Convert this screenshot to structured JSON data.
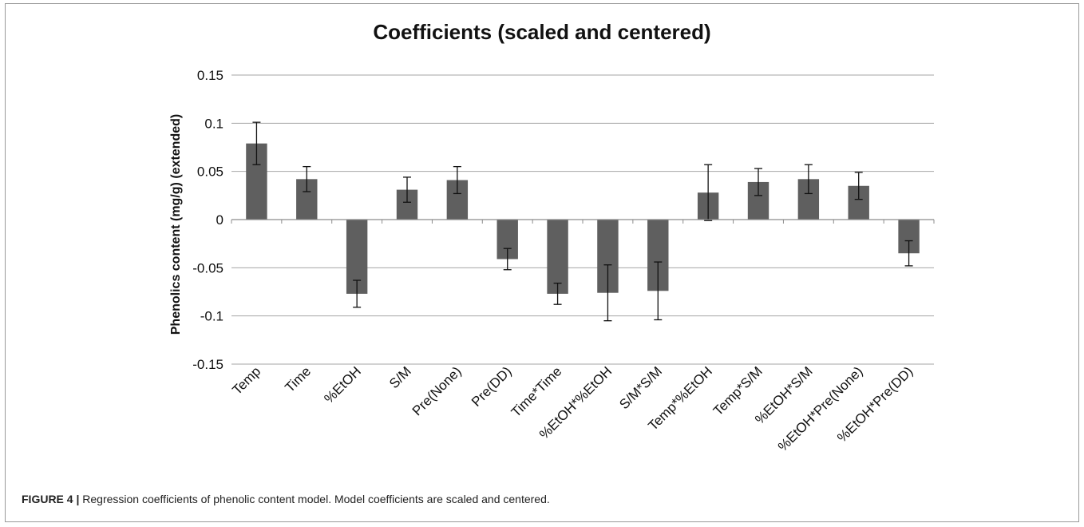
{
  "caption": {
    "label": "FIGURE 4 |",
    "text": " Regression coefficients of phenolic content model. Model coefficients are scaled and centered."
  },
  "chart_data": {
    "type": "bar",
    "title": "Coefficients (scaled and centered)",
    "xlabel": "",
    "ylabel": "Phenolics content (mg/g) (extended)",
    "ylim": [
      -0.15,
      0.15
    ],
    "yticks": [
      0.15,
      0.1,
      0.05,
      0,
      -0.05,
      -0.1,
      -0.15
    ],
    "ytick_labels": [
      "0.15",
      "0.1",
      "0.05",
      "0",
      "-0.05",
      "-0.1",
      "-0.15"
    ],
    "grid": true,
    "legend": "none",
    "bar_color": "#5f5f5f",
    "categories": [
      "Temp",
      "Time",
      "%EtOH",
      "S/M",
      "Pre(None)",
      "Pre(DD)",
      "Time*Time",
      "%EtOH*%EtOH",
      "S/M*S/M",
      "Temp*%EtOH",
      "Temp*S/M",
      "%EtOH*S/M",
      "%EtOH*Pre(None)",
      "%EtOH*Pre(DD)"
    ],
    "values": [
      0.079,
      0.042,
      -0.077,
      0.031,
      0.041,
      -0.041,
      -0.077,
      -0.076,
      -0.074,
      0.028,
      0.039,
      0.042,
      0.035,
      -0.035
    ],
    "errors": [
      0.022,
      0.013,
      0.014,
      0.013,
      0.014,
      0.011,
      0.011,
      0.029,
      0.03,
      0.029,
      0.014,
      0.015,
      0.014,
      0.013
    ]
  }
}
